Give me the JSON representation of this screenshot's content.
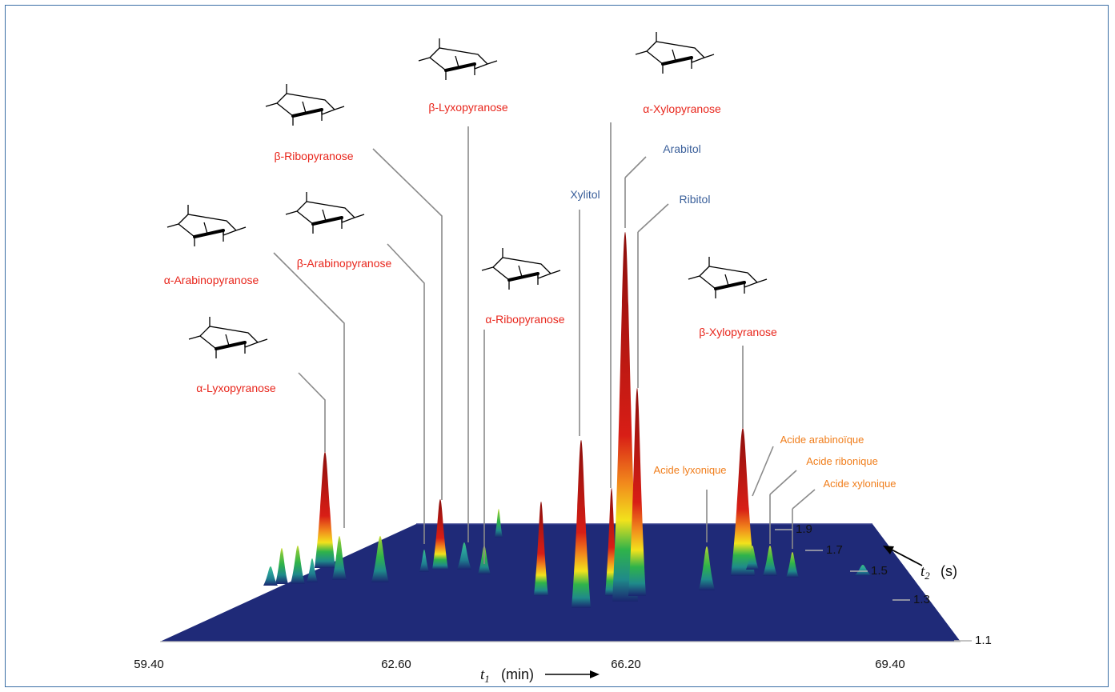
{
  "chart_data": {
    "type": "surface-3d",
    "x_axis": {
      "label": "t",
      "subscript": "1",
      "unit": "(min)",
      "ticks": [
        "59.40",
        "62.60",
        "66.20",
        "69.40"
      ]
    },
    "y_axis": {
      "label": "t",
      "subscript": "2",
      "unit": "(s)",
      "ticks": [
        "1.1",
        "1.3",
        "1.5",
        "1.7",
        "1.9"
      ]
    },
    "colormap": [
      "#1a2470",
      "#1f8a8a",
      "#2fb34a",
      "#f2e21c",
      "#f28a1c",
      "#d81e16",
      "#8c0f0c"
    ],
    "surface_color": "#1f2a78",
    "sugars": [
      {
        "name": "α-Lyxopyranose",
        "category": "pyranose"
      },
      {
        "name": "α-Arabinopyranose",
        "category": "pyranose"
      },
      {
        "name": "β-Arabinopyranose",
        "category": "pyranose"
      },
      {
        "name": "β-Ribopyranose",
        "category": "pyranose"
      },
      {
        "name": "β-Lyxopyranose",
        "category": "pyranose"
      },
      {
        "name": "α-Ribopyranose",
        "category": "pyranose"
      },
      {
        "name": "α-Xylopyranose",
        "category": "pyranose"
      },
      {
        "name": "β-Xylopyranose",
        "category": "pyranose"
      }
    ],
    "polyols": [
      "Xylitol",
      "Arabitol",
      "Ribitol"
    ],
    "acids": [
      "Acide lyxonique",
      "Acide arabinoïque",
      "Acide ribonique",
      "Acide xylonique"
    ]
  }
}
